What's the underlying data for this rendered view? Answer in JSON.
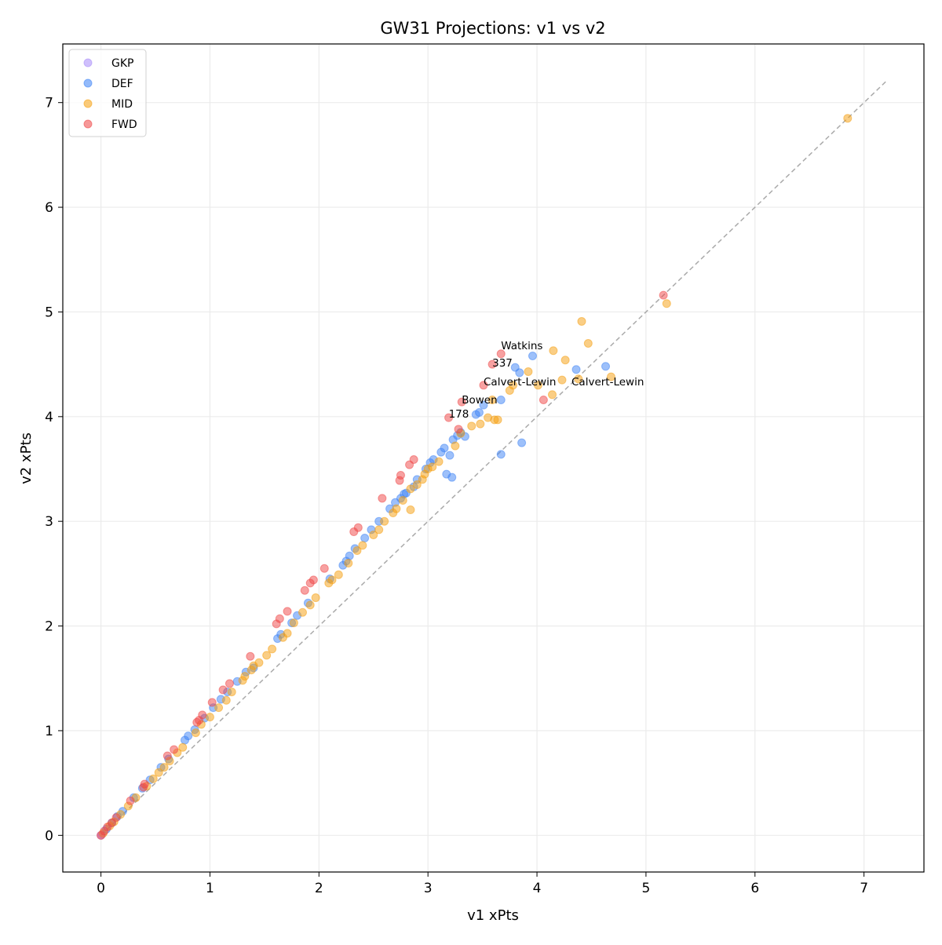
{
  "chart_data": {
    "type": "scatter",
    "title": "GW31 Projections: v1 vs v2",
    "xlabel": "v1 xPts",
    "ylabel": "v2 xPts",
    "xlim": [
      -0.35,
      7.55
    ],
    "ylim": [
      -0.35,
      7.56
    ],
    "xticks": [
      0,
      1,
      2,
      3,
      4,
      5,
      6,
      7
    ],
    "yticks": [
      0,
      1,
      2,
      3,
      4,
      5,
      6,
      7
    ],
    "grid": true,
    "legend_position": "top-left",
    "reference_line": {
      "style": "dashed",
      "color": "#aaaaaa",
      "from": [
        0,
        0
      ],
      "to": [
        7.2,
        7.2
      ]
    },
    "series": [
      {
        "name": "GKP",
        "color": "#a78bfa",
        "points": [
          [
            0,
            0
          ],
          [
            0.01,
            0.01
          ]
        ]
      },
      {
        "name": "DEF",
        "color": "#3b82f6",
        "points": [
          [
            0.05,
            0.06
          ],
          [
            0.1,
            0.12
          ],
          [
            0.15,
            0.18
          ],
          [
            0.2,
            0.23
          ],
          [
            0.3,
            0.36
          ],
          [
            0.38,
            0.45
          ],
          [
            0.45,
            0.53
          ],
          [
            0.55,
            0.65
          ],
          [
            0.62,
            0.73
          ],
          [
            0.77,
            0.91
          ],
          [
            0.8,
            0.95
          ],
          [
            0.86,
            1.01
          ],
          [
            0.95,
            1.12
          ],
          [
            1.03,
            1.22
          ],
          [
            1.1,
            1.3
          ],
          [
            1.16,
            1.37
          ],
          [
            1.25,
            1.47
          ],
          [
            1.33,
            1.56
          ],
          [
            1.4,
            1.6
          ],
          [
            1.62,
            1.88
          ],
          [
            1.65,
            1.92
          ],
          [
            1.75,
            2.03
          ],
          [
            1.8,
            2.1
          ],
          [
            1.9,
            2.22
          ],
          [
            2.1,
            2.45
          ],
          [
            2.22,
            2.58
          ],
          [
            2.25,
            2.62
          ],
          [
            2.28,
            2.67
          ],
          [
            2.33,
            2.74
          ],
          [
            2.42,
            2.84
          ],
          [
            2.48,
            2.92
          ],
          [
            2.55,
            3.0
          ],
          [
            2.65,
            3.12
          ],
          [
            2.7,
            3.18
          ],
          [
            2.75,
            3.22
          ],
          [
            2.78,
            3.26
          ],
          [
            2.8,
            3.27
          ],
          [
            2.87,
            3.33
          ],
          [
            2.9,
            3.4
          ],
          [
            2.98,
            3.5
          ],
          [
            3.02,
            3.56
          ],
          [
            3.05,
            3.59
          ],
          [
            3.12,
            3.66
          ],
          [
            3.15,
            3.7
          ],
          [
            3.2,
            3.63
          ],
          [
            3.23,
            3.78
          ],
          [
            3.27,
            3.82
          ],
          [
            3.3,
            3.85
          ],
          [
            3.34,
            3.81
          ],
          [
            3.44,
            4.02
          ],
          [
            3.47,
            4.04
          ],
          [
            3.51,
            4.11
          ],
          [
            3.67,
            4.16
          ],
          [
            3.8,
            4.47
          ],
          [
            3.84,
            4.42
          ],
          [
            3.96,
            4.58
          ],
          [
            4.36,
            4.45
          ],
          [
            4.63,
            4.48
          ],
          [
            3.67,
            3.64
          ],
          [
            3.86,
            3.75
          ],
          [
            3.17,
            3.45
          ],
          [
            3.22,
            3.42
          ]
        ]
      },
      {
        "name": "MID",
        "color": "#f59e0b",
        "points": [
          [
            0.02,
            0.02
          ],
          [
            0.08,
            0.09
          ],
          [
            0.12,
            0.13
          ],
          [
            0.18,
            0.2
          ],
          [
            0.25,
            0.28
          ],
          [
            0.32,
            0.36
          ],
          [
            0.42,
            0.47
          ],
          [
            0.48,
            0.54
          ],
          [
            0.53,
            0.6
          ],
          [
            0.58,
            0.65
          ],
          [
            0.63,
            0.71
          ],
          [
            0.7,
            0.79
          ],
          [
            0.75,
            0.84
          ],
          [
            0.87,
            0.98
          ],
          [
            0.92,
            1.06
          ],
          [
            1.0,
            1.13
          ],
          [
            1.08,
            1.22
          ],
          [
            1.15,
            1.29
          ],
          [
            1.2,
            1.37
          ],
          [
            1.3,
            1.48
          ],
          [
            1.32,
            1.52
          ],
          [
            1.38,
            1.58
          ],
          [
            1.4,
            1.62
          ],
          [
            1.45,
            1.65
          ],
          [
            1.52,
            1.72
          ],
          [
            1.57,
            1.78
          ],
          [
            1.67,
            1.89
          ],
          [
            1.71,
            1.93
          ],
          [
            1.77,
            2.03
          ],
          [
            1.85,
            2.13
          ],
          [
            1.92,
            2.2
          ],
          [
            1.97,
            2.27
          ],
          [
            2.09,
            2.41
          ],
          [
            2.12,
            2.44
          ],
          [
            2.18,
            2.49
          ],
          [
            2.27,
            2.6
          ],
          [
            2.35,
            2.72
          ],
          [
            2.4,
            2.77
          ],
          [
            2.5,
            2.87
          ],
          [
            2.55,
            2.92
          ],
          [
            2.6,
            3.0
          ],
          [
            2.68,
            3.08
          ],
          [
            2.71,
            3.12
          ],
          [
            2.77,
            3.2
          ],
          [
            2.84,
            3.31
          ],
          [
            2.84,
            3.11
          ],
          [
            2.9,
            3.35
          ],
          [
            2.95,
            3.4
          ],
          [
            2.97,
            3.45
          ],
          [
            3.0,
            3.5
          ],
          [
            3.04,
            3.52
          ],
          [
            3.1,
            3.57
          ],
          [
            3.25,
            3.72
          ],
          [
            3.3,
            3.84
          ],
          [
            3.4,
            3.91
          ],
          [
            3.48,
            3.93
          ],
          [
            3.55,
            3.99
          ],
          [
            3.61,
            3.97
          ],
          [
            3.64,
            3.97
          ],
          [
            3.59,
            4.16
          ],
          [
            3.75,
            4.25
          ],
          [
            3.78,
            4.3
          ],
          [
            3.92,
            4.43
          ],
          [
            4.01,
            4.3
          ],
          [
            4.14,
            4.21
          ],
          [
            4.15,
            4.63
          ],
          [
            4.23,
            4.35
          ],
          [
            4.26,
            4.54
          ],
          [
            4.38,
            4.36
          ],
          [
            4.41,
            4.91
          ],
          [
            4.47,
            4.7
          ],
          [
            4.68,
            4.38
          ],
          [
            5.19,
            5.08
          ],
          [
            6.85,
            6.85
          ]
        ]
      },
      {
        "name": "FWD",
        "color": "#ef4444",
        "points": [
          [
            0,
            0
          ],
          [
            0.03,
            0.04
          ],
          [
            0.06,
            0.08
          ],
          [
            0.1,
            0.12
          ],
          [
            0.14,
            0.17
          ],
          [
            0.27,
            0.33
          ],
          [
            0.39,
            0.46
          ],
          [
            0.4,
            0.49
          ],
          [
            0.61,
            0.76
          ],
          [
            0.67,
            0.82
          ],
          [
            0.88,
            1.08
          ],
          [
            0.9,
            1.1
          ],
          [
            0.93,
            1.15
          ],
          [
            1.02,
            1.27
          ],
          [
            1.12,
            1.39
          ],
          [
            1.18,
            1.45
          ],
          [
            1.37,
            1.71
          ],
          [
            1.61,
            2.02
          ],
          [
            1.64,
            2.07
          ],
          [
            1.71,
            2.14
          ],
          [
            1.87,
            2.34
          ],
          [
            1.92,
            2.41
          ],
          [
            1.95,
            2.44
          ],
          [
            2.05,
            2.55
          ],
          [
            2.32,
            2.9
          ],
          [
            2.36,
            2.94
          ],
          [
            2.58,
            3.22
          ],
          [
            2.74,
            3.39
          ],
          [
            2.75,
            3.44
          ],
          [
            2.83,
            3.54
          ],
          [
            2.87,
            3.59
          ],
          [
            3.19,
            3.99
          ],
          [
            3.28,
            3.88
          ],
          [
            3.31,
            4.14
          ],
          [
            3.51,
            4.3
          ],
          [
            3.59,
            4.5
          ],
          [
            3.67,
            4.6
          ],
          [
            4.06,
            4.16
          ],
          [
            5.16,
            5.16
          ]
        ]
      }
    ],
    "annotations": [
      {
        "text": "Watkins",
        "x": 3.67,
        "y": 4.6
      },
      {
        "text": "337",
        "x": 3.59,
        "y": 4.5
      },
      {
        "text": "Calvert-Lewin",
        "x": 3.51,
        "y": 4.3
      },
      {
        "text": "Calvert-Lewin",
        "x": 3.51,
        "y": 4.3
      },
      {
        "text": "Bowen",
        "x": 3.31,
        "y": 4.14
      },
      {
        "text": "178",
        "x": 3.19,
        "y": 3.99
      }
    ]
  }
}
